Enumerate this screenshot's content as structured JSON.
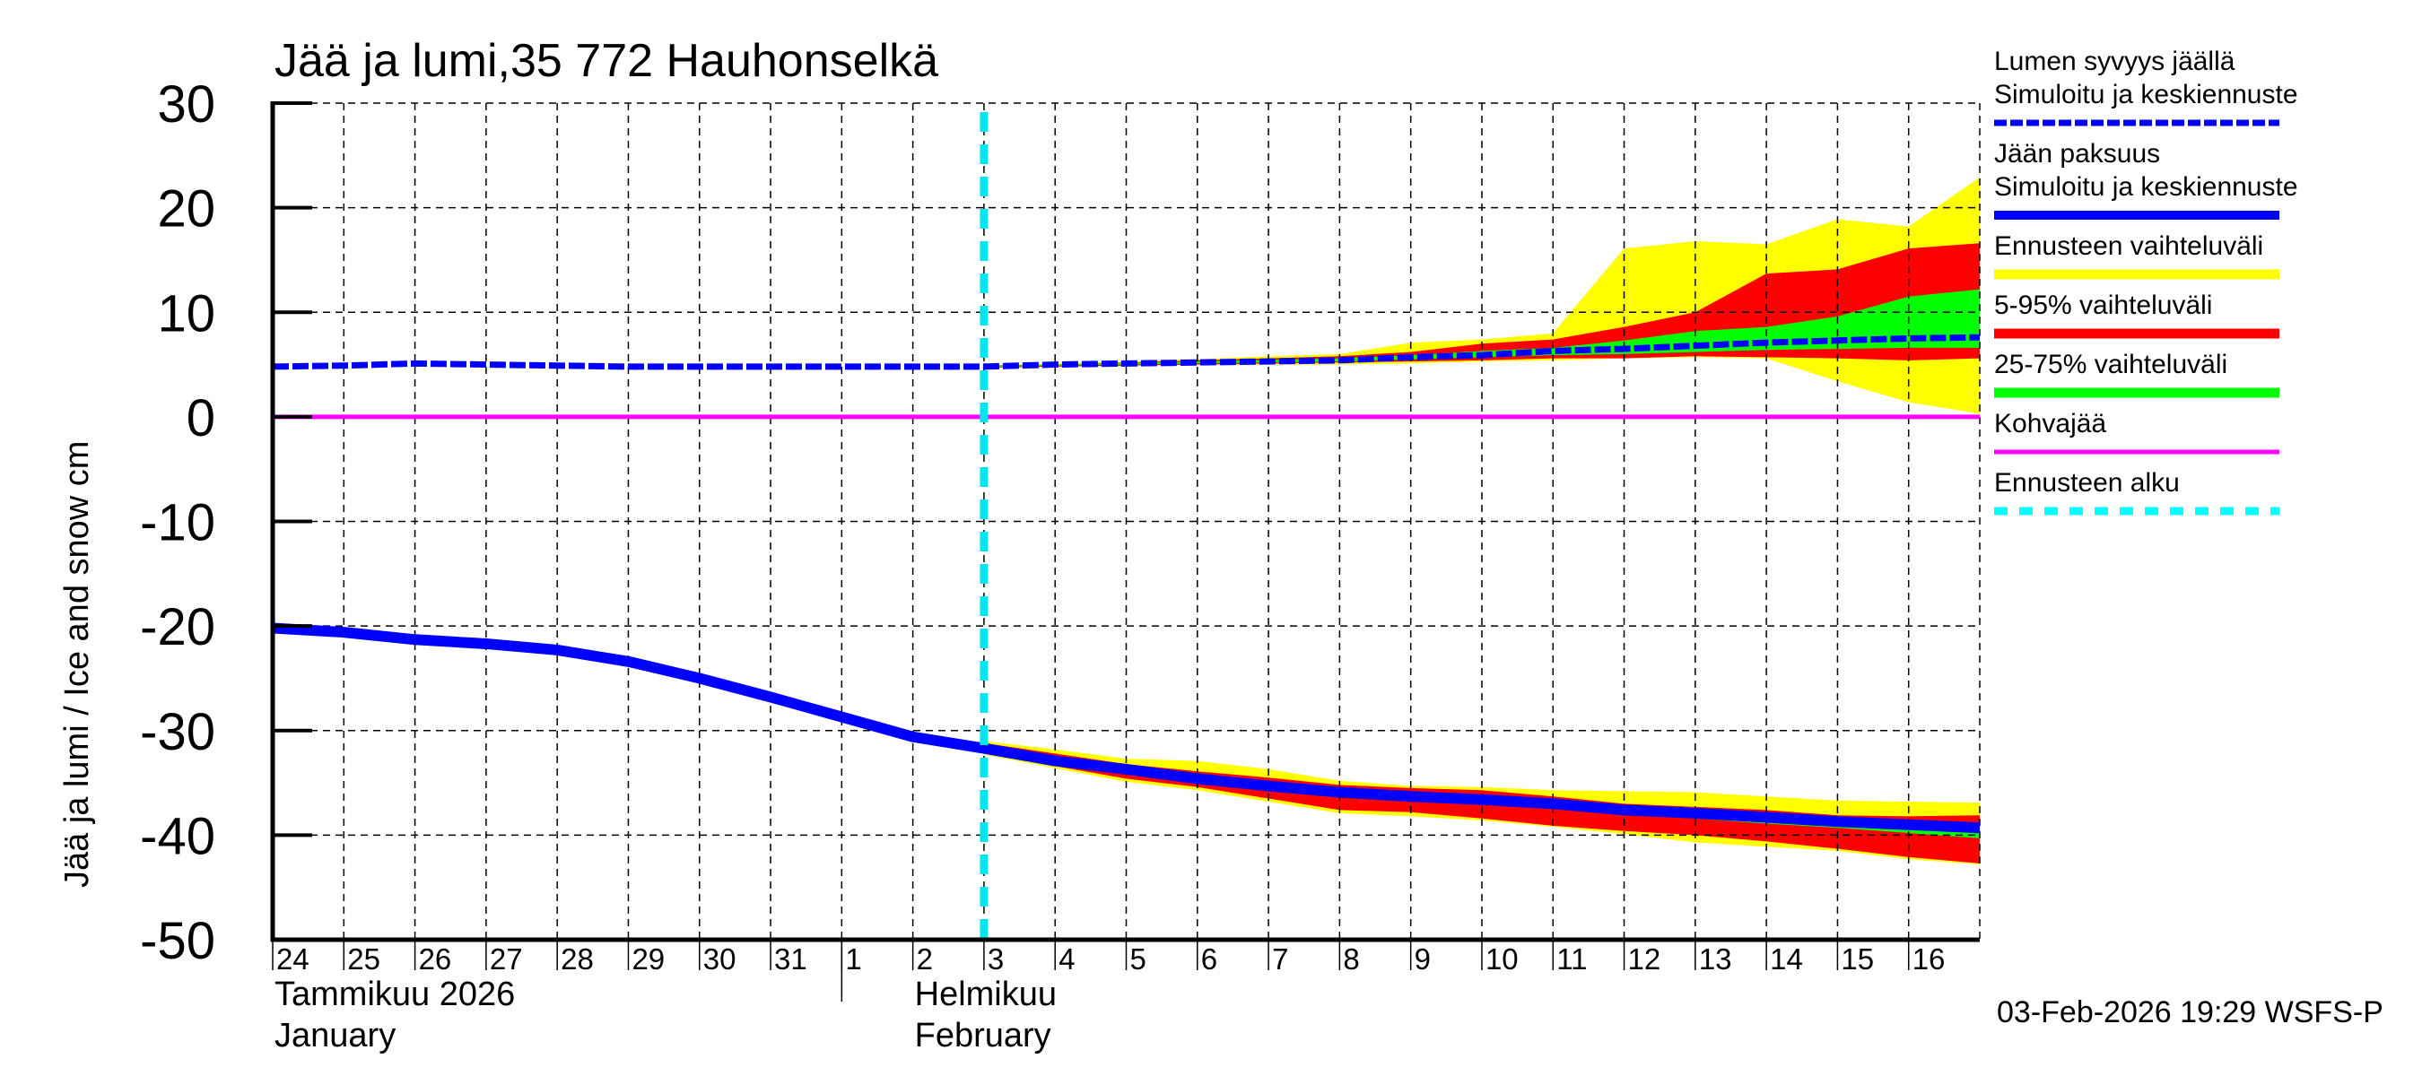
{
  "chart": {
    "title": "Jää ja lumi,35 772 Hauhonselkä",
    "ylabel": "Jää ja lumi / Ice and snow    cm",
    "timestamp": "03-Feb-2026 19:29 WSFS-P",
    "month_labels": [
      {
        "fi": "Tammikuu  2026",
        "en": "January",
        "day_index": 0
      },
      {
        "fi": "Helmikuu",
        "en": "February",
        "day_index": 9
      }
    ],
    "colors": {
      "snow_line": "#0000ff",
      "ice_line": "#0000ff",
      "range_full": "#ffff00",
      "range_5_95": "#ff0000",
      "range_25_75": "#00ff00",
      "slush_ice": "#ff00ff",
      "forecast_start": "#00e5ee",
      "grid": "#000000"
    }
  },
  "legend": [
    {
      "lines": [
        "Lumen syvyys jäällä",
        "Simuloitu ja keskiennuste"
      ],
      "swatch": "dashed",
      "color": "#0000ff",
      "thickness": 7
    },
    {
      "lines": [
        "Jään paksuus",
        "Simuloitu ja keskiennuste"
      ],
      "swatch": "solid",
      "color": "#0000ff",
      "thickness": 10
    },
    {
      "lines": [
        "Ennusteen vaihteluväli"
      ],
      "swatch": "solid",
      "color": "#ffff00",
      "thickness": 11
    },
    {
      "lines": [
        "5-95% vaihteluväli"
      ],
      "swatch": "solid",
      "color": "#ff0000",
      "thickness": 11
    },
    {
      "lines": [
        "25-75% vaihteluväli"
      ],
      "swatch": "solid",
      "color": "#00ff00",
      "thickness": 11
    },
    {
      "lines": [
        "Kohvajää"
      ],
      "swatch": "solid",
      "color": "#ff00ff",
      "thickness": 5
    },
    {
      "lines": [
        "Ennusteen alku"
      ],
      "swatch": "dashed-wide",
      "color": "#00ffff",
      "thickness": 9
    }
  ],
  "chart_data": {
    "type": "area",
    "title": "Jää ja lumi,35 772 Hauhonselkä",
    "xlabel": "Tammikuu 2026 / January – Helmikuu / February",
    "ylabel": "Jää ja lumi / Ice and snow cm",
    "ylim": [
      -50,
      30
    ],
    "yticks": [
      30,
      20,
      10,
      0,
      -10,
      -20,
      -30,
      -40,
      -50
    ],
    "x_tick_labels": [
      "24",
      "25",
      "26",
      "27",
      "28",
      "29",
      "30",
      "31",
      "1",
      "2",
      "3",
      "4",
      "5",
      "6",
      "7",
      "8",
      "9",
      "10",
      "11",
      "12",
      "13",
      "14",
      "15",
      "16"
    ],
    "x_range_days": [
      0,
      24
    ],
    "grid": true,
    "legend_position": "right",
    "forecast_start_day": 10,
    "x_days": [
      0,
      1,
      2,
      3,
      4,
      5,
      6,
      7,
      8,
      9,
      10,
      11,
      12,
      13,
      14,
      15,
      16,
      17,
      18,
      19,
      20,
      21,
      22,
      23,
      24
    ],
    "series": [
      {
        "name": "Lumen syvyys jäällä – Simuloitu ja keskiennuste",
        "style": "dashed",
        "values": [
          4.8,
          4.9,
          5.1,
          5.0,
          4.9,
          4.8,
          4.8,
          4.8,
          4.8,
          4.8,
          4.8,
          5.0,
          5.1,
          5.2,
          5.3,
          5.4,
          5.7,
          5.9,
          6.3,
          6.5,
          6.8,
          7.1,
          7.3,
          7.5,
          7.6
        ]
      },
      {
        "name": "Jään paksuus – Simuloitu ja keskiennuste",
        "style": "solid",
        "values": [
          -20.2,
          -20.6,
          -21.3,
          -21.7,
          -22.3,
          -23.4,
          -25.0,
          -26.8,
          -28.7,
          -30.6,
          -31.7,
          -32.9,
          -33.7,
          -34.6,
          -35.3,
          -35.9,
          -36.3,
          -36.6,
          -37.0,
          -37.6,
          -37.9,
          -38.3,
          -38.7,
          -39.0,
          -39.3
        ]
      },
      {
        "name": "Kohvajää",
        "style": "solid",
        "values": [
          0,
          0,
          0,
          0,
          0,
          0,
          0,
          0,
          0,
          0,
          0,
          0,
          0,
          0,
          0,
          0,
          0,
          0,
          0,
          0,
          0,
          0,
          0,
          0,
          0
        ]
      }
    ],
    "bands": {
      "snow": {
        "x_days": [
          10,
          11,
          12,
          13,
          14,
          15,
          16,
          17,
          18,
          19,
          20,
          21,
          22,
          23,
          24
        ],
        "full_upper": [
          4.9,
          5.1,
          5.3,
          5.5,
          5.8,
          6.0,
          7.1,
          7.4,
          8.0,
          16.1,
          16.8,
          16.5,
          18.9,
          18.2,
          22.9
        ],
        "full_lower": [
          4.7,
          4.8,
          4.9,
          5.0,
          5.0,
          5.0,
          5.1,
          5.3,
          5.4,
          5.6,
          5.7,
          5.6,
          3.4,
          1.4,
          0.3
        ],
        "p95": [
          4.9,
          5.0,
          5.2,
          5.4,
          5.6,
          5.8,
          6.2,
          7.0,
          7.4,
          8.6,
          10.0,
          13.7,
          14.1,
          16.1,
          16.6
        ],
        "p5": [
          4.7,
          4.8,
          4.9,
          5.0,
          5.1,
          5.2,
          5.3,
          5.4,
          5.6,
          5.6,
          5.8,
          5.7,
          5.6,
          5.4,
          5.6
        ],
        "p75": [
          4.85,
          5.0,
          5.15,
          5.3,
          5.45,
          5.6,
          5.9,
          6.3,
          6.6,
          7.3,
          8.2,
          8.6,
          9.6,
          11.5,
          12.2
        ],
        "p25": [
          4.75,
          4.9,
          5.0,
          5.1,
          5.2,
          5.3,
          5.5,
          5.7,
          5.9,
          6.0,
          6.2,
          6.4,
          6.5,
          6.6,
          6.6
        ]
      },
      "ice": {
        "x_days": [
          10,
          11,
          12,
          13,
          14,
          15,
          16,
          17,
          18,
          19,
          20,
          21,
          22,
          23,
          24
        ],
        "full_upper": [
          -31.0,
          -31.8,
          -32.7,
          -32.9,
          -33.7,
          -34.8,
          -35.3,
          -35.4,
          -35.7,
          -35.8,
          -35.9,
          -36.3,
          -36.7,
          -36.8,
          -36.9
        ],
        "full_lower": [
          -32.3,
          -33.6,
          -34.9,
          -35.7,
          -36.8,
          -37.9,
          -38.2,
          -38.6,
          -39.2,
          -39.9,
          -40.7,
          -41.1,
          -41.5,
          -42.3,
          -42.8
        ],
        "p95": [
          -31.2,
          -32.2,
          -33.2,
          -33.9,
          -34.5,
          -35.2,
          -35.5,
          -35.7,
          -36.3,
          -37.0,
          -37.3,
          -37.6,
          -38.1,
          -38.2,
          -38.1
        ],
        "p5": [
          -32.2,
          -33.4,
          -34.6,
          -35.4,
          -36.5,
          -37.6,
          -37.8,
          -38.4,
          -39.1,
          -39.6,
          -40.0,
          -40.6,
          -41.3,
          -42.1,
          -42.7
        ],
        "p75": [
          -31.4,
          -32.6,
          -33.4,
          -34.2,
          -34.9,
          -35.5,
          -35.9,
          -36.2,
          -36.7,
          -37.3,
          -37.6,
          -38.0,
          -38.4,
          -38.7,
          -39.0
        ],
        "p25": [
          -31.9,
          -33.1,
          -34.0,
          -35.0,
          -35.7,
          -36.3,
          -36.7,
          -37.0,
          -37.4,
          -38.0,
          -38.4,
          -38.9,
          -39.3,
          -39.8,
          -40.3
        ]
      }
    }
  }
}
